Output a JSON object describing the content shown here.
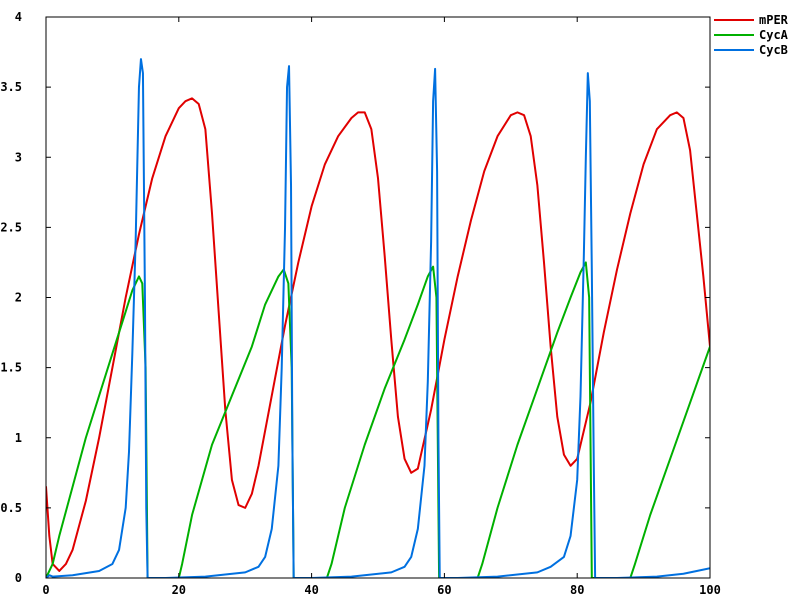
{
  "chart_data": {
    "type": "line",
    "title": "",
    "xlabel": "",
    "ylabel": "",
    "xlim": [
      0,
      100
    ],
    "ylim": [
      0,
      4
    ],
    "grid": false,
    "legend_placement": "top-right (outside plot area)",
    "x_ticks": [
      "0",
      "20",
      "40",
      "60",
      "80",
      "100"
    ],
    "y_ticks": [
      "0",
      "0.5",
      "1",
      "1.5",
      "2",
      "2.5",
      "3",
      "3.5",
      "4"
    ],
    "series": [
      {
        "name": "mPER",
        "color": "#e00000",
        "x": [
          0,
          0.5,
          1,
          2,
          3,
          4,
          6,
          8,
          10,
          12,
          14,
          16,
          18,
          20,
          21,
          22,
          23,
          24,
          25,
          26,
          27,
          28,
          29,
          30,
          31,
          32,
          34,
          36,
          38,
          40,
          42,
          44,
          46,
          47,
          48,
          49,
          50,
          51,
          52,
          53,
          54,
          55,
          56,
          58,
          60,
          62,
          64,
          66,
          68,
          70,
          71,
          72,
          73,
          74,
          75,
          76,
          77,
          78,
          79,
          80,
          82,
          84,
          86,
          88,
          90,
          92,
          94,
          95,
          96,
          97,
          98,
          99,
          100
        ],
        "y": [
          0.65,
          0.3,
          0.1,
          0.05,
          0.1,
          0.2,
          0.55,
          1.0,
          1.5,
          2.0,
          2.45,
          2.85,
          3.15,
          3.35,
          3.4,
          3.42,
          3.38,
          3.2,
          2.6,
          1.9,
          1.2,
          0.7,
          0.52,
          0.5,
          0.6,
          0.8,
          1.3,
          1.8,
          2.25,
          2.65,
          2.95,
          3.15,
          3.28,
          3.32,
          3.32,
          3.2,
          2.85,
          2.3,
          1.7,
          1.15,
          0.85,
          0.75,
          0.78,
          1.2,
          1.7,
          2.15,
          2.55,
          2.9,
          3.15,
          3.3,
          3.32,
          3.3,
          3.15,
          2.8,
          2.25,
          1.65,
          1.15,
          0.88,
          0.8,
          0.85,
          1.25,
          1.75,
          2.2,
          2.6,
          2.95,
          3.2,
          3.3,
          3.32,
          3.28,
          3.05,
          2.6,
          2.15,
          1.65
        ]
      },
      {
        "name": "CycA",
        "color": "#00b000",
        "x": [
          0,
          0.5,
          1,
          2,
          4,
          6,
          8,
          10,
          12,
          13,
          14,
          14.5,
          15,
          15.3,
          20,
          20.5,
          22,
          25,
          28,
          31,
          33,
          35,
          35.8,
          36.5,
          37,
          37.3,
          42.3,
          43,
          45,
          48,
          51,
          54,
          56,
          57.5,
          58.3,
          58.8,
          59.2,
          65,
          65.7,
          68,
          71,
          74,
          77,
          79,
          80.5,
          81.3,
          81.8,
          82.2,
          88,
          88.7,
          91,
          94,
          97,
          100
        ],
        "y": [
          0,
          0.05,
          0.1,
          0.3,
          0.65,
          1.0,
          1.3,
          1.6,
          1.9,
          2.05,
          2.15,
          2.1,
          1.5,
          0,
          0,
          0.1,
          0.45,
          0.95,
          1.3,
          1.65,
          1.95,
          2.15,
          2.2,
          2.1,
          1.5,
          0,
          0,
          0.1,
          0.5,
          0.95,
          1.35,
          1.7,
          1.95,
          2.15,
          2.22,
          2.0,
          0,
          0,
          0.1,
          0.5,
          0.95,
          1.35,
          1.75,
          2.0,
          2.18,
          2.25,
          2.0,
          0,
          0,
          0.1,
          0.45,
          0.85,
          1.25,
          1.65
        ]
      },
      {
        "name": "CycB",
        "color": "#0070e0",
        "x": [
          0,
          0.5,
          1,
          4,
          8,
          10,
          11,
          12,
          12.5,
          13,
          13.5,
          14,
          14.3,
          14.6,
          14.9,
          15.1,
          15.3,
          18,
          24,
          30,
          32,
          33,
          34,
          35,
          35.5,
          36,
          36.3,
          36.6,
          36.9,
          37.1,
          37.3,
          40,
          46,
          52,
          54,
          55,
          56,
          57,
          57.5,
          58,
          58.3,
          58.6,
          58.9,
          59.1,
          59.3,
          62,
          68,
          74,
          76,
          78,
          79,
          80,
          80.5,
          81,
          81.3,
          81.6,
          81.9,
          82.2,
          82.5,
          82.7,
          86,
          92,
          96,
          98,
          100
        ],
        "y": [
          0,
          0.02,
          0.01,
          0.02,
          0.05,
          0.1,
          0.2,
          0.5,
          0.9,
          1.6,
          2.4,
          3.5,
          3.7,
          3.6,
          2.0,
          0.5,
          0,
          0,
          0.01,
          0.04,
          0.08,
          0.15,
          0.35,
          0.8,
          1.5,
          2.5,
          3.5,
          3.65,
          2.8,
          1.0,
          0,
          0,
          0.01,
          0.04,
          0.08,
          0.15,
          0.35,
          0.8,
          1.4,
          2.4,
          3.4,
          3.63,
          2.9,
          1.0,
          0,
          0,
          0.01,
          0.04,
          0.08,
          0.15,
          0.3,
          0.7,
          1.3,
          2.3,
          3.0,
          3.6,
          3.4,
          2.2,
          0.8,
          0,
          0,
          0.01,
          0.03,
          0.05,
          0.07
        ]
      }
    ]
  }
}
